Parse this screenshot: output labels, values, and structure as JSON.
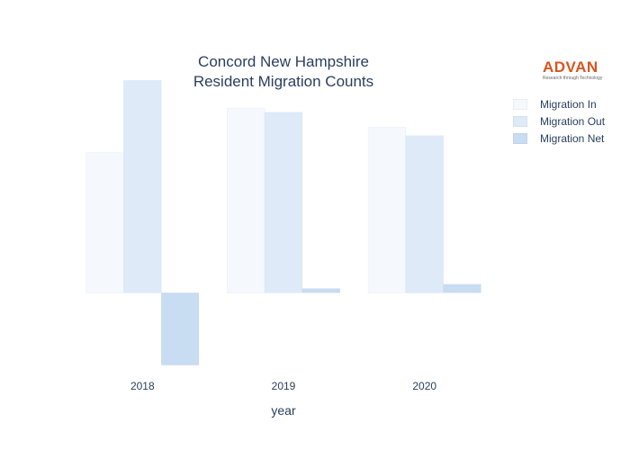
{
  "chart_data": {
    "type": "bar",
    "title": [
      "Concord New Hampshire",
      "Resident Migration Counts"
    ],
    "xlabel": "year",
    "ylabel": "",
    "categories": [
      "2018",
      "2019",
      "2020"
    ],
    "series": [
      {
        "name": "Migration In",
        "color": "#f5f9fe",
        "values": [
          3300,
          4350,
          3900
        ]
      },
      {
        "name": "Migration Out",
        "color": "#deeaf8",
        "values": [
          5000,
          4250,
          3700
        ]
      },
      {
        "name": "Migration Net",
        "color": "#c8dcf2",
        "values": [
          -1700,
          100,
          200
        ]
      }
    ],
    "ylim": [
      -1900,
      5200
    ],
    "grid": false,
    "legend_position": "top-right"
  },
  "logo": {
    "name": "ADVAN",
    "tagline": "Research through Technology",
    "color": "#d9541e"
  }
}
